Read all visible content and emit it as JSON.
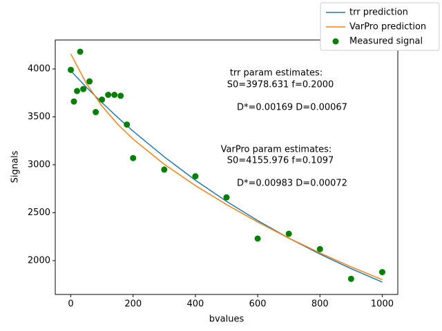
{
  "chart_data": {
    "type": "line_scatter",
    "x_label": "bvalues",
    "y_label": "Signals",
    "xlim": [
      -50,
      1050
    ],
    "ylim": [
      1647,
      4302
    ],
    "xticks": [
      0,
      200,
      400,
      600,
      800,
      1000
    ],
    "yticks": [
      2000,
      2500,
      3000,
      3500,
      4000
    ],
    "legend": "upper right",
    "series": [
      {
        "name": "trr prediction",
        "kind": "line",
        "color": "#1f77b4",
        "x": [
          0,
          50,
          100,
          150,
          200,
          300,
          400,
          500,
          600,
          700,
          800,
          900,
          1000
        ],
        "values": [
          3979,
          3809,
          3649,
          3496,
          3351,
          3083,
          2839,
          2618,
          2418,
          2235,
          2068,
          1916,
          1776
        ]
      },
      {
        "name": "VarPro prediction",
        "kind": "line",
        "color": "#ff7f0e",
        "x": [
          0,
          50,
          100,
          150,
          200,
          300,
          400,
          500,
          600,
          700,
          800,
          900,
          1000
        ],
        "values": [
          4156,
          3848,
          3613,
          3425,
          3268,
          3005,
          2783,
          2585,
          2403,
          2235,
          2080,
          1935,
          1801
        ]
      },
      {
        "name": "Measured signal",
        "kind": "scatter",
        "color": "#008000",
        "x": [
          0,
          10,
          20,
          30,
          40,
          60,
          80,
          100,
          120,
          140,
          160,
          180,
          200,
          300,
          400,
          500,
          600,
          700,
          800,
          900,
          1000
        ],
        "values": [
          3990,
          3660,
          3770,
          4180,
          3790,
          3870,
          3550,
          3680,
          3730,
          3730,
          3720,
          3420,
          3070,
          2950,
          2880,
          2660,
          2230,
          2280,
          2120,
          1810,
          1880
        ]
      }
    ],
    "annotations": [
      {
        "lines": [
          "trr param estimates:",
          " S0=3978.631 f=0.2000",
          "D*=0.00169 D=0.00067"
        ]
      },
      {
        "lines": [
          "VarPro param estimates:",
          " S0=4155.976 f=0.1097",
          "D*=0.00983 D=0.00072"
        ]
      }
    ]
  }
}
